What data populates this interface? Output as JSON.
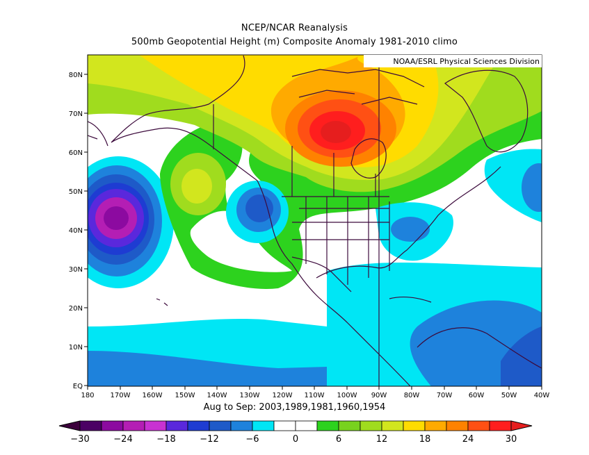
{
  "title": "NCEP/NCAR Reanalysis",
  "subtitle": "500mb Geopotential Height (m) Composite Anomaly 1981-2010 climo",
  "credit": "NOAA/ESRL Physical Sciences Division",
  "period_label": "Aug to Sep: 2003,1989,1981,1960,1954",
  "lat_labels": [
    "80N",
    "70N",
    "60N",
    "50N",
    "40N",
    "30N",
    "20N",
    "10N",
    "EQ"
  ],
  "lon_labels": [
    "180",
    "170W",
    "160W",
    "150W",
    "140W",
    "130W",
    "120W",
    "110W",
    "100W",
    "90W",
    "80W",
    "70W",
    "60W",
    "50W",
    "40W"
  ],
  "colorbar": {
    "ticks": [
      "-30",
      "-24",
      "-18",
      "-12",
      "-6",
      "0",
      "6",
      "12",
      "18",
      "24",
      "30"
    ],
    "colors": [
      "#4b0064",
      "#8c0aa0",
      "#b41eb4",
      "#c832d2",
      "#5a28dc",
      "#1e3cd2",
      "#1e5ac8",
      "#1e82dc",
      "#00e6f5",
      "#ffffff",
      "#ffffff",
      "#2dd21e",
      "#78d21e",
      "#a0dc1e",
      "#d2e61e",
      "#ffdc00",
      "#ffaa00",
      "#ff8200",
      "#ff5014",
      "#ff1e1e"
    ],
    "low_end_color": "#3c003c",
    "high_end_color": "#e61e1e"
  },
  "map_data": {
    "projection": "equirectangular",
    "lon_range": [
      -180,
      -40
    ],
    "lat_range": [
      0,
      85
    ],
    "field": "500mb geopotential height anomaly (m)",
    "features": [
      {
        "name": "positive anomaly max",
        "lon": -103,
        "lat": 66,
        "value_range": "24 to 30"
      },
      {
        "name": "negative anomaly min",
        "lon": -169,
        "lat": 44,
        "value_range": "-24 to -18"
      },
      {
        "name": "negative anomaly",
        "lon": -126,
        "lat": 45,
        "value_range": "-12 to -9"
      },
      {
        "name": "weak negative anomaly",
        "lon": -72,
        "lat": 40,
        "value_range": "-9 to -6"
      },
      {
        "name": "weak negative anomaly",
        "lon": -43,
        "lat": 50,
        "value_range": "-9 to -6"
      }
    ]
  }
}
